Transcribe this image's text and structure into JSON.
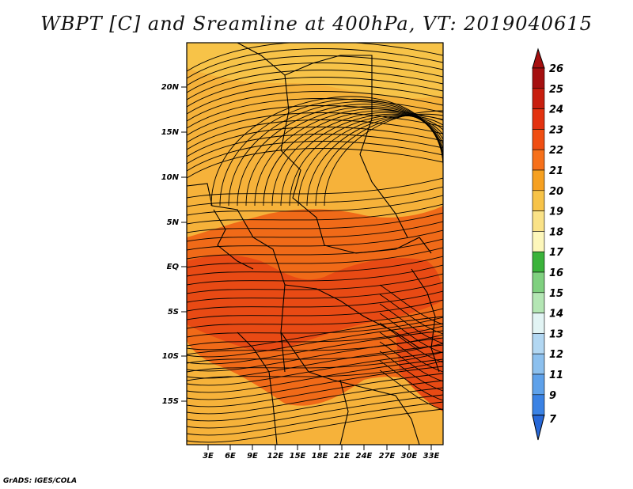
{
  "title": "WBPT [C] and Sreamline at 400hPa, VT: 2019040615",
  "credit": "GrADS: IGES/COLA",
  "lat_labels": [
    "20N",
    "15N",
    "10N",
    "5N",
    "EQ",
    "5S",
    "10S",
    "15S"
  ],
  "lon_labels": [
    "3E",
    "6E",
    "9E",
    "12E",
    "15E",
    "18E",
    "21E",
    "24E",
    "27E",
    "30E",
    "33E"
  ],
  "colorbar": {
    "labels": [
      "26",
      "25",
      "24",
      "23",
      "22",
      "21",
      "20",
      "19",
      "18",
      "17",
      "16",
      "15",
      "14",
      "13",
      "12",
      "11",
      "9",
      "7"
    ],
    "colors": [
      "#a50f0f",
      "#c81e0e",
      "#e3320f",
      "#f04e12",
      "#f6701a",
      "#f6a020",
      "#f7c348",
      "#fae287",
      "#fdf7bb",
      "#3ab33a",
      "#7fd07f",
      "#b4e6b4",
      "#e2f4f4",
      "#b2d7f2",
      "#8cc0ee",
      "#5ea1ea",
      "#3a82e4",
      "#2768d8"
    ]
  },
  "colors": {
    "background_field": "#f6b23a",
    "warm_band": "#f06a18",
    "hot_core": "#e84a14",
    "streamline": "#000000",
    "border": "#000000"
  }
}
